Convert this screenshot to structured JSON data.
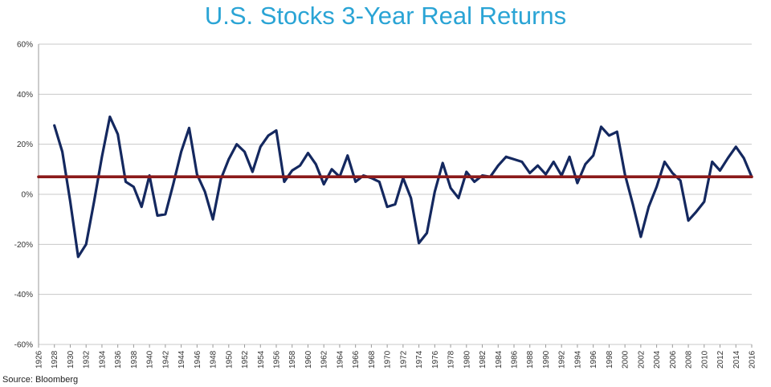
{
  "chart_data": {
    "type": "line",
    "title": "U.S. Stocks 3-Year Real Returns",
    "source": "Source: Bloomberg",
    "xlabel": "",
    "ylabel": "",
    "x_range": [
      1926,
      2016
    ],
    "ylim": [
      -60,
      60
    ],
    "y_ticks": [
      -60,
      -40,
      -20,
      0,
      20,
      40,
      60
    ],
    "y_tick_labels": [
      "-60%",
      "-40%",
      "-20%",
      "0%",
      "20%",
      "40%",
      "60%"
    ],
    "x_tick_labels": [
      "1926",
      "1928",
      "1930",
      "1932",
      "1934",
      "1936",
      "1938",
      "1940",
      "1942",
      "1944",
      "1946",
      "1948",
      "1950",
      "1952",
      "1954",
      "1956",
      "1958",
      "1960",
      "1962",
      "1964",
      "1966",
      "1968",
      "1970",
      "1972",
      "1974",
      "1976",
      "1978",
      "1980",
      "1982",
      "1984",
      "1986",
      "1988",
      "1990",
      "1992",
      "1994",
      "1996",
      "1998",
      "2000",
      "2002",
      "2004",
      "2006",
      "2008",
      "2010",
      "2012",
      "2014",
      "2016"
    ],
    "grid": true,
    "colors": {
      "series": "#14285f",
      "average": "#8b1a1a",
      "grid": "#c8c8c8",
      "title": "#2aa4d5"
    },
    "series": [
      {
        "x": [
          1928,
          1929,
          1930,
          1931,
          1932,
          1933,
          1934,
          1935,
          1936,
          1937,
          1938,
          1939,
          1940,
          1941,
          1942,
          1943,
          1944,
          1945,
          1946,
          1947,
          1948,
          1949,
          1950,
          1951,
          1952,
          1953,
          1954,
          1955,
          1956,
          1957,
          1958,
          1959,
          1960,
          1961,
          1962,
          1963,
          1964,
          1965,
          1966,
          1967,
          1968,
          1969,
          1970,
          1971,
          1972,
          1973,
          1974,
          1975,
          1976,
          1977,
          1978,
          1979,
          1980,
          1981,
          1982,
          1983,
          1984,
          1985,
          1986,
          1987,
          1988,
          1989,
          1990,
          1991,
          1992,
          1993,
          1994,
          1995,
          1996,
          1997,
          1998,
          1999,
          2000,
          2001,
          2002,
          2003,
          2004,
          2005,
          2006,
          2007,
          2008,
          2009,
          2010,
          2011,
          2012,
          2013,
          2014,
          2015,
          2016
        ],
        "values": [
          27.5,
          17,
          -3,
          -25,
          -20,
          -3,
          15,
          31,
          24,
          5,
          3,
          -5,
          7.5,
          -8.5,
          -8,
          4,
          17,
          26.5,
          8,
          1,
          -10,
          6,
          14,
          20,
          17,
          9,
          19,
          23.5,
          25.5,
          5,
          9.5,
          11.5,
          16.5,
          12,
          4,
          10,
          7,
          15.5,
          5,
          7.5,
          6.5,
          5,
          -5,
          -4,
          6.5,
          -1.5,
          -19.5,
          -15.5,
          1,
          12.5,
          2.5,
          -1.5,
          9,
          5,
          7.5,
          7,
          11.5,
          15,
          14,
          13,
          8.5,
          11.5,
          8,
          13,
          7.5,
          15,
          4.5,
          12,
          15.5,
          27,
          23.5,
          25,
          8,
          -4,
          -17,
          -5,
          3,
          13,
          8.5,
          5.5,
          -10.5,
          -7,
          -3,
          13,
          9.5,
          14.5,
          19,
          14.5,
          7
        ]
      },
      {
        "x": [
          1926,
          2016
        ],
        "values": [
          7,
          7
        ]
      }
    ]
  }
}
